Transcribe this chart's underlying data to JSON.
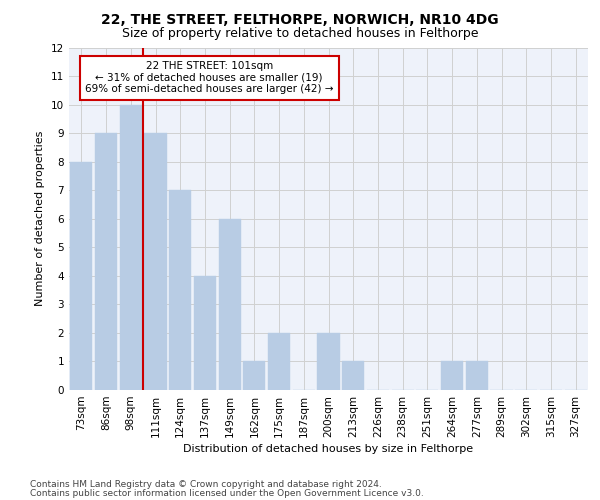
{
  "title_line1": "22, THE STREET, FELTHORPE, NORWICH, NR10 4DG",
  "title_line2": "Size of property relative to detached houses in Felthorpe",
  "xlabel": "Distribution of detached houses by size in Felthorpe",
  "ylabel": "Number of detached properties",
  "categories": [
    "73sqm",
    "86sqm",
    "98sqm",
    "111sqm",
    "124sqm",
    "137sqm",
    "149sqm",
    "162sqm",
    "175sqm",
    "187sqm",
    "200sqm",
    "213sqm",
    "226sqm",
    "238sqm",
    "251sqm",
    "264sqm",
    "277sqm",
    "289sqm",
    "302sqm",
    "315sqm",
    "327sqm"
  ],
  "values": [
    8,
    9,
    10,
    9,
    7,
    4,
    6,
    1,
    2,
    0,
    2,
    1,
    0,
    0,
    0,
    1,
    1,
    0,
    0,
    0,
    0
  ],
  "bar_color": "#b8cce4",
  "bar_edgecolor": "#b8cce4",
  "annotation_text_line1": "22 THE STREET: 101sqm",
  "annotation_text_line2": "← 31% of detached houses are smaller (19)",
  "annotation_text_line3": "69% of semi-detached houses are larger (42) →",
  "annotation_box_color": "#cc0000",
  "annotation_bg_color": "#ffffff",
  "vline_color": "#cc0000",
  "vline_x_index": 2.5,
  "ylim": [
    0,
    12
  ],
  "yticks": [
    0,
    1,
    2,
    3,
    4,
    5,
    6,
    7,
    8,
    9,
    10,
    11,
    12
  ],
  "grid_color": "#d0d0d0",
  "background_color": "#eef2fa",
  "footer_line1": "Contains HM Land Registry data © Crown copyright and database right 2024.",
  "footer_line2": "Contains public sector information licensed under the Open Government Licence v3.0.",
  "title_fontsize": 10,
  "subtitle_fontsize": 9,
  "axis_label_fontsize": 8,
  "tick_fontsize": 7.5,
  "annotation_fontsize": 7.5,
  "footer_fontsize": 6.5
}
